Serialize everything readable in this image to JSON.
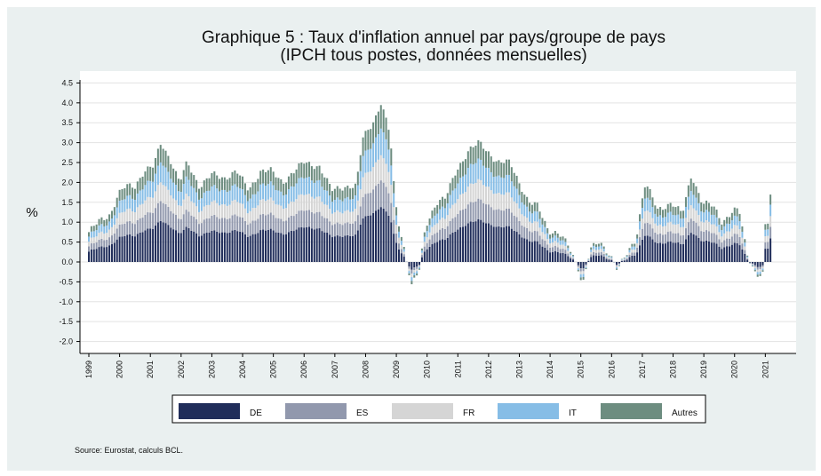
{
  "chart_data": {
    "type": "bar",
    "stacked": true,
    "title": "Graphique 5 : Taux d'inflation annuel par pays/groupe de pays",
    "subtitle": "(IPCH tous postes, données mensuelles)",
    "ylabel": "%",
    "ylim": [
      -2.3,
      4.8
    ],
    "yticks": [
      "4.5",
      "4.0",
      "3.5",
      "3.0",
      "2.5",
      "2.0",
      "1.5",
      "1.0",
      "0.5",
      "0.0",
      "-0.5",
      "-1.0",
      "-1.5",
      "-2.0"
    ],
    "x_tick_labels": [
      "1999",
      "2000",
      "2001",
      "2002",
      "2003",
      "2004",
      "2005",
      "2006",
      "2007",
      "2008",
      "2009",
      "2010",
      "2011",
      "2012",
      "2013",
      "2014",
      "2015",
      "2016",
      "2017",
      "2018",
      "2019",
      "2020",
      "2021"
    ],
    "grid": true,
    "legend_placement": "bottom",
    "legend": [
      "DE",
      "ES",
      "FR",
      "IT",
      "Autres"
    ],
    "series_colors": [
      "#202d5a",
      "#9198ad",
      "#d5d5d5",
      "#86bde6",
      "#6d8d80"
    ],
    "period": {
      "start_year": 1999,
      "start_month": 1,
      "end_year": 2021,
      "end_month": 3
    },
    "total_anchors": [
      [
        1999.0,
        0.75
      ],
      [
        1999.3,
        1.0
      ],
      [
        1999.7,
        1.2
      ],
      [
        1999.95,
        1.7
      ],
      [
        2000.2,
        1.9
      ],
      [
        2000.5,
        1.9
      ],
      [
        2000.8,
        2.3
      ],
      [
        2001.1,
        2.4
      ],
      [
        2001.35,
        3.0
      ],
      [
        2001.7,
        2.5
      ],
      [
        2001.95,
        2.0
      ],
      [
        2002.2,
        2.5
      ],
      [
        2002.6,
        1.9
      ],
      [
        2003.0,
        2.2
      ],
      [
        2003.4,
        2.1
      ],
      [
        2003.8,
        2.3
      ],
      [
        2004.2,
        1.8
      ],
      [
        2004.6,
        2.3
      ],
      [
        2004.9,
        2.3
      ],
      [
        2005.3,
        2.0
      ],
      [
        2005.7,
        2.3
      ],
      [
        2006.0,
        2.5
      ],
      [
        2006.5,
        2.4
      ],
      [
        2006.9,
        1.8
      ],
      [
        2007.3,
        1.9
      ],
      [
        2007.7,
        1.9
      ],
      [
        2007.9,
        3.1
      ],
      [
        2008.3,
        3.6
      ],
      [
        2008.5,
        4.0
      ],
      [
        2008.8,
        3.2
      ],
      [
        2008.95,
        1.6
      ],
      [
        2009.1,
        0.9
      ],
      [
        2009.35,
        0.0
      ],
      [
        2009.5,
        -0.6
      ],
      [
        2009.75,
        -0.2
      ],
      [
        2009.95,
        0.9
      ],
      [
        2010.3,
        1.5
      ],
      [
        2010.6,
        1.6
      ],
      [
        2010.95,
        2.3
      ],
      [
        2011.35,
        2.8
      ],
      [
        2011.7,
        3.0
      ],
      [
        2011.95,
        2.8
      ],
      [
        2012.3,
        2.5
      ],
      [
        2012.7,
        2.5
      ],
      [
        2013.0,
        2.0
      ],
      [
        2013.3,
        1.5
      ],
      [
        2013.6,
        1.4
      ],
      [
        2013.95,
        0.8
      ],
      [
        2014.3,
        0.7
      ],
      [
        2014.6,
        0.4
      ],
      [
        2014.95,
        -0.2
      ],
      [
        2015.05,
        -0.6
      ],
      [
        2015.3,
        0.3
      ],
      [
        2015.6,
        0.5
      ],
      [
        2015.95,
        0.2
      ],
      [
        2016.2,
        -0.2
      ],
      [
        2016.5,
        0.2
      ],
      [
        2016.8,
        0.6
      ],
      [
        2017.0,
        1.6
      ],
      [
        2017.1,
        2.0
      ],
      [
        2017.5,
        1.3
      ],
      [
        2017.95,
        1.5
      ],
      [
        2018.3,
        1.2
      ],
      [
        2018.6,
        2.2
      ],
      [
        2018.95,
        1.5
      ],
      [
        2019.3,
        1.4
      ],
      [
        2019.6,
        1.0
      ],
      [
        2019.95,
        1.3
      ],
      [
        2020.15,
        1.3
      ],
      [
        2020.4,
        0.2
      ],
      [
        2020.7,
        -0.3
      ],
      [
        2020.92,
        -0.3
      ],
      [
        2021.0,
        0.9
      ],
      [
        2021.1,
        1.0
      ],
      [
        2021.2,
        2.0
      ]
    ],
    "shares": {
      "DE": 0.35,
      "ES": 0.17,
      "FR": 0.16,
      "IT": 0.17,
      "Autres": 0.15
    }
  },
  "source": "Source: Eurostat, calculs BCL."
}
